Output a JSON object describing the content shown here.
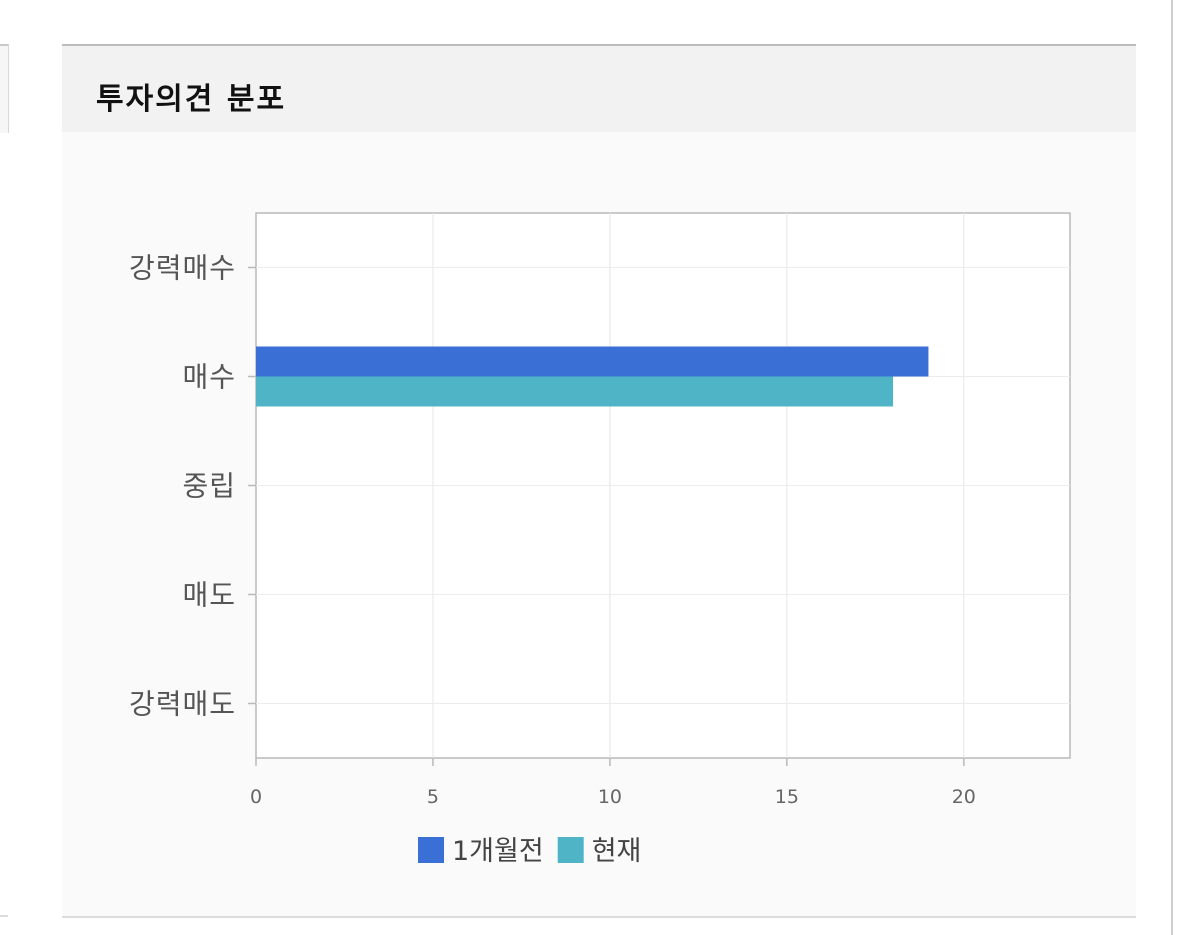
{
  "panel": {
    "title": "투자의견 분포"
  },
  "colors": {
    "series1": "#3a6fd6",
    "series2": "#4fb4c6"
  },
  "chart_data": {
    "type": "bar",
    "orientation": "horizontal",
    "title": "투자의견 분포",
    "categories": [
      "강력매수",
      "매수",
      "중립",
      "매도",
      "강력매도"
    ],
    "series": [
      {
        "name": "1개월전",
        "values": [
          0,
          19,
          0,
          0,
          0
        ],
        "color": "#3a6fd6"
      },
      {
        "name": "현재",
        "values": [
          0,
          18,
          0,
          0,
          0
        ],
        "color": "#4fb4c6"
      }
    ],
    "xlim": [
      0,
      23
    ],
    "xticks": [
      "0",
      "5",
      "10",
      "15",
      "20"
    ],
    "grid": true,
    "legend": "bottom"
  }
}
